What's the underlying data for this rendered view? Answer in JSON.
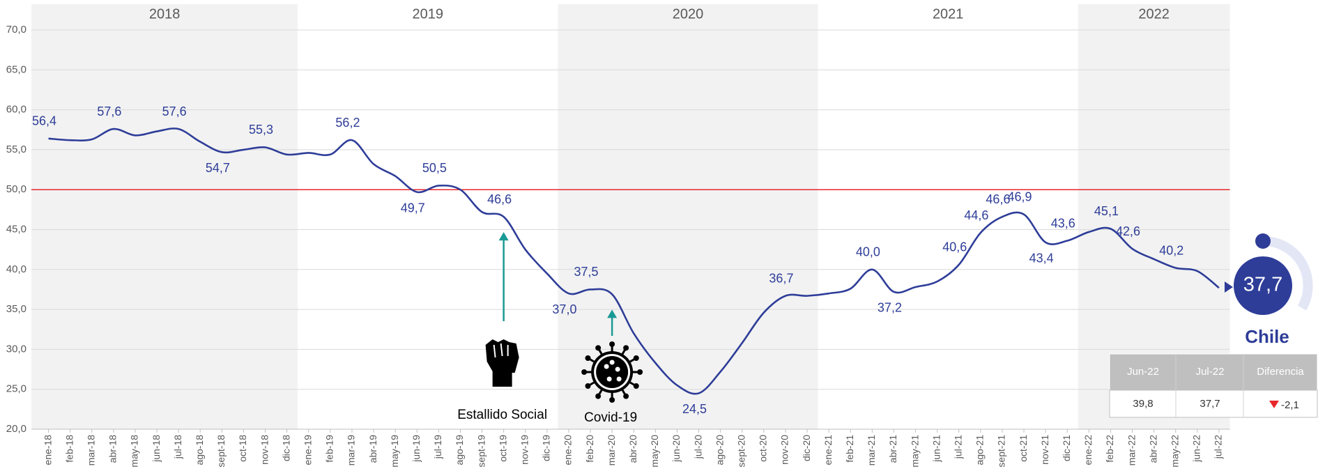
{
  "chart_data": {
    "type": "line",
    "color": "#2e3d98",
    "categories": [
      "ene-18",
      "feb-18",
      "mar-18",
      "abr-18",
      "may-18",
      "jun-18",
      "jul-18",
      "ago-18",
      "sept-18",
      "oct-18",
      "nov-18",
      "dic-18",
      "ene-19",
      "feb-19",
      "mar-19",
      "abr-19",
      "may-19",
      "jun-19",
      "jul-19",
      "ago-19",
      "sept-19",
      "oct-19",
      "nov-19",
      "dic-19",
      "ene-20",
      "feb-20",
      "mar-20",
      "abr-20",
      "may-20",
      "jun-20",
      "jul-20",
      "ago-20",
      "sept-20",
      "oct-20",
      "nov-20",
      "dic-20",
      "ene-21",
      "feb-21",
      "mar-21",
      "abr-21",
      "may-21",
      "jun-21",
      "jul-21",
      "ago-21",
      "sept-21",
      "oct-21",
      "nov-21",
      "dic-21",
      "ene-22",
      "feb-22",
      "mar-22",
      "abr-22",
      "may-22",
      "jun-22",
      "jul-22"
    ],
    "values": [
      56.4,
      56.2,
      56.3,
      57.6,
      56.8,
      57.3,
      57.6,
      56.0,
      54.7,
      55.0,
      55.3,
      54.4,
      54.6,
      54.4,
      56.2,
      53.2,
      51.7,
      49.7,
      50.5,
      50.0,
      47.2,
      46.6,
      42.5,
      39.5,
      37.0,
      37.5,
      36.9,
      32.0,
      28.3,
      25.5,
      24.5,
      27.2,
      30.8,
      34.6,
      36.7,
      36.7,
      37.0,
      37.6,
      40.0,
      37.2,
      37.8,
      38.5,
      40.6,
      44.6,
      46.6,
      46.9,
      43.4,
      43.6,
      44.7,
      45.1,
      42.6,
      41.3,
      40.2,
      39.8,
      37.7
    ],
    "value_labels": [
      "56,4",
      null,
      null,
      "57,6",
      null,
      null,
      "57,6",
      null,
      "54,7",
      null,
      "55,3",
      null,
      null,
      null,
      "56,2",
      null,
      null,
      "49,7",
      "50,5",
      null,
      null,
      "46,6",
      null,
      null,
      "37,0",
      "37,5",
      null,
      null,
      null,
      null,
      "24,5",
      null,
      null,
      null,
      "36,7",
      null,
      null,
      null,
      "40,0",
      "37,2",
      null,
      null,
      "40,6",
      "44,6",
      "46,6",
      "46,9",
      "43,4",
      "43,6",
      null,
      "45,1",
      "42,6",
      null,
      "40,2",
      null,
      null
    ],
    "years": [
      "2018",
      "2019",
      "2020",
      "2021",
      "2022"
    ],
    "ylim": [
      20,
      70
    ],
    "yticks": [
      {
        "value": 20,
        "label": "20,0"
      },
      {
        "value": 25,
        "label": "25,0"
      },
      {
        "value": 30,
        "label": "30,0"
      },
      {
        "value": 35,
        "label": "35,0"
      },
      {
        "value": 40,
        "label": "40,0"
      },
      {
        "value": 45,
        "label": "45,0"
      },
      {
        "value": 50,
        "label": "50,0"
      },
      {
        "value": 55,
        "label": "55,0"
      },
      {
        "value": 60,
        "label": "60,0"
      },
      {
        "value": 65,
        "label": "65,0"
      },
      {
        "value": 70,
        "label": "70,0"
      }
    ],
    "grid": true,
    "reference_line": {
      "value": 50,
      "color": "#e8272c"
    },
    "annotations": [
      {
        "text": "Estallido Social",
        "category": "oct-19"
      },
      {
        "text": "Covid-19",
        "category": "mar-20"
      }
    ],
    "highlight": {
      "value": 37.7,
      "label": "37,7",
      "country": "Chile"
    }
  },
  "table": {
    "header": [
      "Jun-22",
      "Jul-22",
      "Diferencia"
    ],
    "rows": [
      [
        "39,8",
        "37,7",
        "-2,1"
      ]
    ]
  }
}
